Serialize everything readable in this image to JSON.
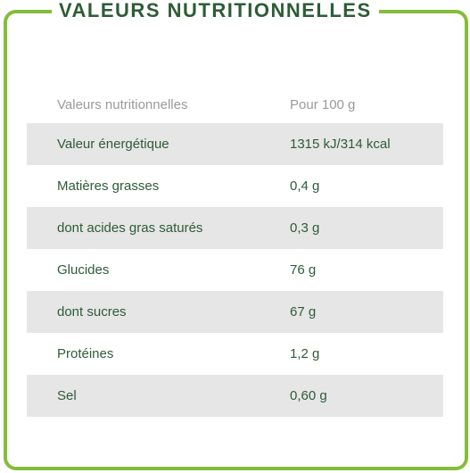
{
  "title": "VALEURS NUTRITIONNELLES",
  "table": {
    "header": {
      "name": "Valeurs nutritionnelles",
      "value": "Pour 100 g"
    },
    "rows": [
      {
        "name": "Valeur énergétique",
        "value": "1315 kJ/314 kcal"
      },
      {
        "name": "Matières grasses",
        "value": "0,4 g"
      },
      {
        "name": "dont acides gras saturés",
        "value": "0,3 g"
      },
      {
        "name": "Glucides",
        "value": "76 g"
      },
      {
        "name": "dont sucres",
        "value": "67 g"
      },
      {
        "name": "Protéines",
        "value": "1,2 g"
      },
      {
        "name": "Sel",
        "value": "0,60 g"
      }
    ]
  },
  "colors": {
    "border": "#84bd3a",
    "text": "#2d5c37",
    "header_text": "#9a9a9a",
    "row_shade": "#e6e6e6"
  }
}
